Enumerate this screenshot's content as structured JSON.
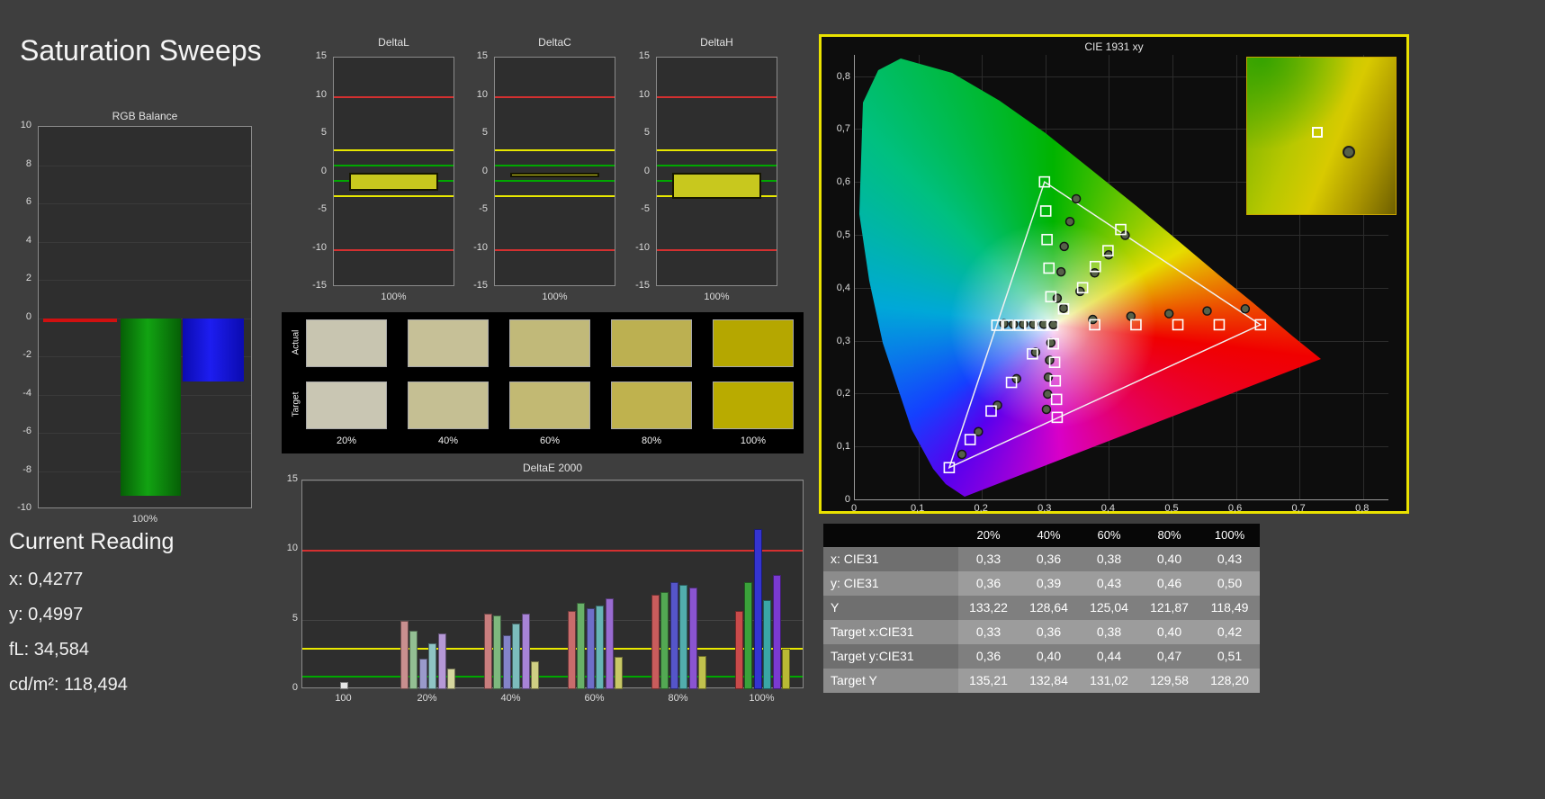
{
  "page": {
    "title": "Saturation Sweeps"
  },
  "current_reading": {
    "heading": "Current Reading",
    "lines": [
      "x: 0,4277",
      "y: 0,4997",
      "fL: 34,584",
      "cd/m²: 118,494"
    ]
  },
  "swatches": {
    "row_labels": [
      "Actual",
      "Target"
    ],
    "col_labels": [
      "20%",
      "40%",
      "60%",
      "80%",
      "100%"
    ],
    "actual_colors": [
      "#c8c5b0",
      "#c6c097",
      "#c1b979",
      "#bcb051",
      "#b5a700"
    ],
    "target_colors": [
      "#c9c6b3",
      "#c5bf93",
      "#c2b973",
      "#bfb24e",
      "#b9ab00"
    ]
  },
  "table": {
    "headers": [
      "",
      "20%",
      "40%",
      "60%",
      "80%",
      "100%"
    ],
    "rows": [
      {
        "label": "x: CIE31",
        "values": [
          "0,33",
          "0,36",
          "0,38",
          "0,40",
          "0,43"
        ]
      },
      {
        "label": "y: CIE31",
        "values": [
          "0,36",
          "0,39",
          "0,43",
          "0,46",
          "0,50"
        ]
      },
      {
        "label": "Y",
        "values": [
          "133,22",
          "128,64",
          "125,04",
          "121,87",
          "118,49"
        ]
      },
      {
        "label": "Target x:CIE31",
        "values": [
          "0,33",
          "0,36",
          "0,38",
          "0,40",
          "0,42"
        ]
      },
      {
        "label": "Target y:CIE31",
        "values": [
          "0,36",
          "0,40",
          "0,44",
          "0,47",
          "0,51"
        ]
      },
      {
        "label": "Target Y",
        "values": [
          "135,21",
          "132,84",
          "131,02",
          "129,58",
          "128,20"
        ]
      }
    ]
  },
  "chart_data": [
    {
      "id": "rgb_balance",
      "type": "bar",
      "title": "RGB Balance",
      "ylim": [
        -10,
        10
      ],
      "y_tick_step": 2,
      "xlabel": "100%",
      "categories": [
        "Red",
        "Green",
        "Blue"
      ],
      "values": [
        -0.2,
        -9.3,
        -3.3
      ],
      "colors": [
        "#d01010",
        "#0a8a0a",
        "#1414e6"
      ]
    },
    {
      "id": "delta_l",
      "type": "bar",
      "title": "DeltaL",
      "ylim": [
        -15,
        15
      ],
      "y_tick_step": 5,
      "xlabel": "100%",
      "value": -2.4,
      "bar_color": "#c8c81e",
      "ref_lines": {
        "red": 10,
        "yellow": 3,
        "green": 1
      }
    },
    {
      "id": "delta_c",
      "type": "bar",
      "title": "DeltaC",
      "ylim": [
        -15,
        15
      ],
      "y_tick_step": 5,
      "xlabel": "100%",
      "value": -0.6,
      "bar_color": "#c8c81e",
      "ref_lines": {
        "red": 10,
        "yellow": 3,
        "green": 1
      }
    },
    {
      "id": "delta_h",
      "type": "bar",
      "title": "DeltaH",
      "ylim": [
        -15,
        15
      ],
      "y_tick_step": 5,
      "xlabel": "100%",
      "value": -3.5,
      "bar_color": "#c8c81e",
      "ref_lines": {
        "red": 10,
        "yellow": 3,
        "green": 1
      }
    },
    {
      "id": "delta_e2000",
      "type": "bar",
      "title": "DeltaE 2000",
      "ylim": [
        0,
        15
      ],
      "y_ticks": [
        0,
        5,
        10,
        15
      ],
      "ref_lines": {
        "red": 10,
        "yellow": 3,
        "green": 1
      },
      "groups": [
        {
          "label": "100",
          "bars": [
            {
              "value": 0.5,
              "color": "#e6e6e6"
            }
          ]
        },
        {
          "label": "20%",
          "bars": [
            {
              "value": 4.9,
              "color": "#c98f8f"
            },
            {
              "value": 4.2,
              "color": "#93bf93"
            },
            {
              "value": 2.2,
              "color": "#9a9acb"
            },
            {
              "value": 3.3,
              "color": "#8fc4c4"
            },
            {
              "value": 4.0,
              "color": "#b598d6"
            },
            {
              "value": 1.5,
              "color": "#d6d69e"
            }
          ]
        },
        {
          "label": "40%",
          "bars": [
            {
              "value": 5.4,
              "color": "#c97e7e"
            },
            {
              "value": 5.3,
              "color": "#7eb87e"
            },
            {
              "value": 3.9,
              "color": "#8484c9"
            },
            {
              "value": 4.7,
              "color": "#7cbcbc"
            },
            {
              "value": 5.4,
              "color": "#a883d6"
            },
            {
              "value": 2.0,
              "color": "#cfcf83"
            }
          ]
        },
        {
          "label": "60%",
          "bars": [
            {
              "value": 5.6,
              "color": "#c96c6c"
            },
            {
              "value": 6.2,
              "color": "#68b068"
            },
            {
              "value": 5.8,
              "color": "#6e6ec9"
            },
            {
              "value": 6.0,
              "color": "#66b5b5"
            },
            {
              "value": 6.5,
              "color": "#996bd1"
            },
            {
              "value": 2.3,
              "color": "#c8c866"
            }
          ]
        },
        {
          "label": "80%",
          "bars": [
            {
              "value": 6.8,
              "color": "#c95c5c"
            },
            {
              "value": 7.0,
              "color": "#53a853"
            },
            {
              "value": 7.7,
              "color": "#5555c9"
            },
            {
              "value": 7.5,
              "color": "#52adad"
            },
            {
              "value": 7.3,
              "color": "#8a54d1"
            },
            {
              "value": 2.4,
              "color": "#c1c14d"
            }
          ]
        },
        {
          "label": "100%",
          "bars": [
            {
              "value": 5.6,
              "color": "#c94a4a"
            },
            {
              "value": 7.7,
              "color": "#3aa23a"
            },
            {
              "value": 11.5,
              "color": "#3434d1"
            },
            {
              "value": 6.4,
              "color": "#3aa6a6"
            },
            {
              "value": 8.2,
              "color": "#7a3ad1"
            },
            {
              "value": 2.9,
              "color": "#b9b934"
            }
          ]
        }
      ]
    },
    {
      "id": "cie1931",
      "type": "scatter",
      "title": "CIE 1931 xy",
      "xlim": [
        0,
        0.84
      ],
      "ylim": [
        0,
        0.84
      ],
      "x_tick_labels": [
        "0",
        "0,1",
        "0,2",
        "0,3",
        "0,4",
        "0,5",
        "0,6",
        "0,7",
        "0,8"
      ],
      "y_tick_labels": [
        "0",
        "0,1",
        "0,2",
        "0,3",
        "0,4",
        "0,5",
        "0,6",
        "0,7",
        "0,8"
      ],
      "gamut_triangle": [
        [
          0.64,
          0.33
        ],
        [
          0.3,
          0.6
        ],
        [
          0.15,
          0.06
        ]
      ],
      "targets": {
        "white": [
          [
            0.313,
            0.329
          ]
        ],
        "red": [
          [
            0.379,
            0.33
          ],
          [
            0.444,
            0.33
          ],
          [
            0.51,
            0.33
          ],
          [
            0.575,
            0.33
          ],
          [
            0.64,
            0.33
          ]
        ],
        "green": [
          [
            0.31,
            0.383
          ],
          [
            0.307,
            0.437
          ],
          [
            0.304,
            0.491
          ],
          [
            0.302,
            0.545
          ],
          [
            0.3,
            0.6
          ]
        ],
        "blue": [
          [
            0.281,
            0.275
          ],
          [
            0.248,
            0.221
          ],
          [
            0.216,
            0.167
          ],
          [
            0.183,
            0.113
          ],
          [
            0.15,
            0.06
          ]
        ],
        "cyan": [
          [
            0.296,
            0.329
          ],
          [
            0.278,
            0.329
          ],
          [
            0.261,
            0.329
          ],
          [
            0.243,
            0.329
          ],
          [
            0.225,
            0.329
          ]
        ],
        "magenta": [
          [
            0.314,
            0.294
          ],
          [
            0.316,
            0.259
          ],
          [
            0.317,
            0.224
          ],
          [
            0.319,
            0.189
          ],
          [
            0.32,
            0.155
          ]
        ],
        "yellow": [
          [
            0.33,
            0.36
          ],
          [
            0.36,
            0.4
          ],
          [
            0.38,
            0.44
          ],
          [
            0.4,
            0.47
          ],
          [
            0.42,
            0.51
          ]
        ]
      },
      "measured": {
        "white": [
          [
            0.314,
            0.33
          ]
        ],
        "red": [
          [
            0.376,
            0.34
          ],
          [
            0.436,
            0.346
          ],
          [
            0.496,
            0.351
          ],
          [
            0.556,
            0.356
          ],
          [
            0.616,
            0.36
          ]
        ],
        "green": [
          [
            0.32,
            0.38
          ],
          [
            0.326,
            0.43
          ],
          [
            0.331,
            0.478
          ],
          [
            0.34,
            0.525
          ],
          [
            0.35,
            0.568
          ]
        ],
        "blue": [
          [
            0.286,
            0.278
          ],
          [
            0.256,
            0.228
          ],
          [
            0.226,
            0.178
          ],
          [
            0.196,
            0.128
          ],
          [
            0.17,
            0.085
          ]
        ],
        "cyan": [
          [
            0.299,
            0.331
          ],
          [
            0.283,
            0.331
          ],
          [
            0.267,
            0.331
          ],
          [
            0.251,
            0.331
          ],
          [
            0.236,
            0.332
          ]
        ],
        "magenta": [
          [
            0.31,
            0.296
          ],
          [
            0.308,
            0.263
          ],
          [
            0.306,
            0.231
          ],
          [
            0.305,
            0.199
          ],
          [
            0.303,
            0.17
          ]
        ],
        "yellow": [
          [
            0.33,
            0.361
          ],
          [
            0.356,
            0.393
          ],
          [
            0.379,
            0.428
          ],
          [
            0.401,
            0.462
          ],
          [
            0.427,
            0.499
          ]
        ]
      },
      "inset": {
        "square": [
          0.47,
          0.475
        ],
        "circle": [
          0.68,
          0.595
        ]
      }
    }
  ]
}
